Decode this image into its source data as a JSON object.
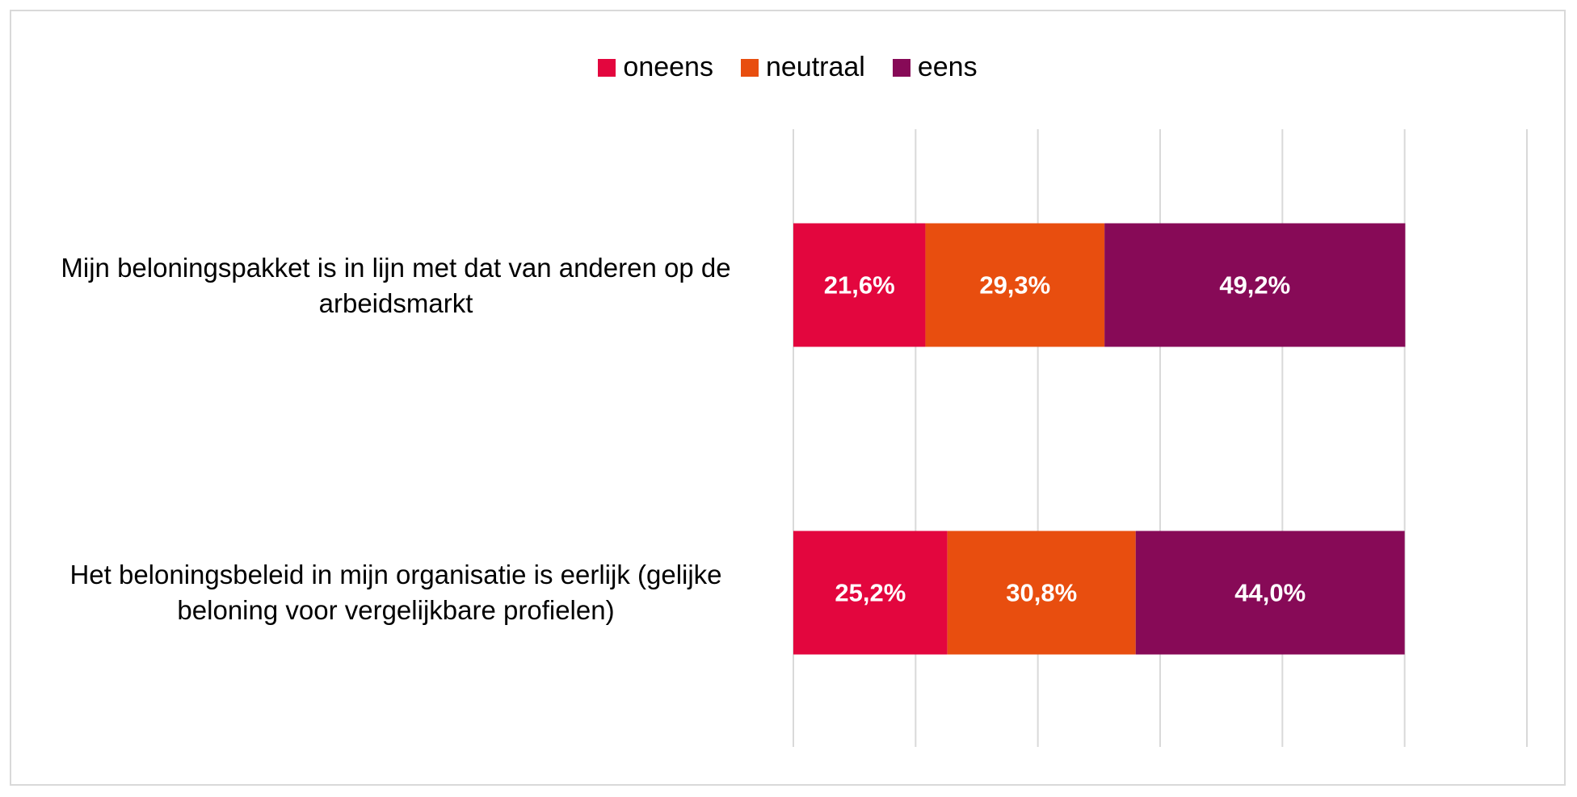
{
  "chart_data": {
    "type": "bar",
    "orientation": "horizontal",
    "stacked": true,
    "title": "",
    "xlabel": "",
    "ylabel": "",
    "xlim": [
      0,
      1.2
    ],
    "grid": true,
    "legend_position": "top",
    "categories": [
      "Mijn beloningspakket is in lijn met dat van anderen op de arbeidsmarkt",
      "Het beloningsbeleid in mijn organisatie is eerlijk (gelijke beloning voor vergelijkbare profielen)"
    ],
    "series": [
      {
        "name": "oneens",
        "color": "#e3063e",
        "values": [
          0.216,
          0.252
        ],
        "labels": [
          "21,6%",
          "25,2%"
        ]
      },
      {
        "name": "neutraal",
        "color": "#e84e0f",
        "values": [
          0.293,
          0.308
        ],
        "labels": [
          "29,3%",
          "30,8%"
        ]
      },
      {
        "name": "eens",
        "color": "#870a57",
        "values": [
          0.492,
          0.44
        ],
        "labels": [
          "49,2%",
          "44,0%"
        ]
      }
    ]
  }
}
